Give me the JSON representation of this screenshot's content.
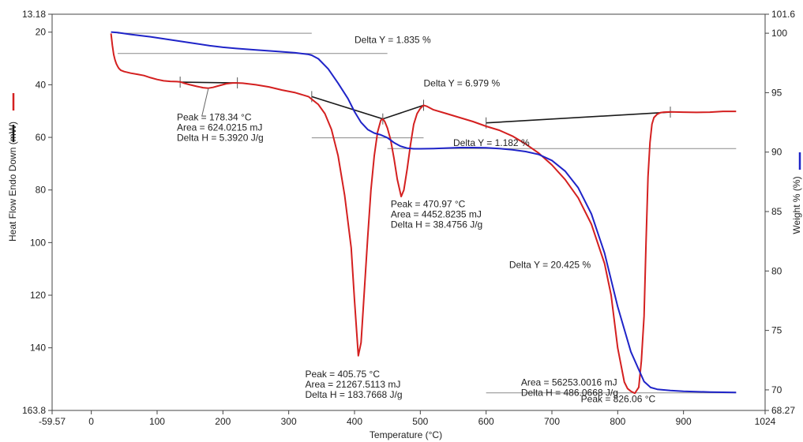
{
  "chart_data": {
    "type": "line",
    "xlabel": "Temperature (°C)",
    "ylabel_left": "Heat Flow Endo Down (mW)",
    "ylabel_right": "Weight % (%)",
    "x_ticks": [
      "-59.57",
      "0",
      "100",
      "200",
      "300",
      "400",
      "500",
      "600",
      "700",
      "800",
      "900",
      "1024"
    ],
    "left_ticks": [
      "13.18",
      "20",
      "40",
      "60",
      "80",
      "100",
      "120",
      "140",
      "163.8"
    ],
    "right_ticks": [
      "101.6",
      "100",
      "95",
      "90",
      "85",
      "80",
      "75",
      "70",
      "68.27"
    ],
    "xlim": [
      -59.57,
      1024
    ],
    "ylim_left": [
      13.18,
      163.8
    ],
    "ylim_left_inverted": true,
    "ylim_right": [
      68.27,
      101.6
    ],
    "grid": false,
    "legend": "none; colored markers beside axis titles",
    "series": [
      {
        "name": "Heat Flow",
        "axis": "left",
        "color": "#d42020",
        "x": [
          30,
          32,
          34,
          36,
          38,
          40,
          42,
          45,
          50,
          55,
          60,
          70,
          80,
          90,
          100,
          110,
          120,
          130,
          135,
          140,
          150,
          160,
          170,
          178,
          185,
          195,
          205,
          215,
          222,
          230,
          250,
          270,
          290,
          310,
          330,
          335,
          345,
          355,
          365,
          375,
          385,
          395,
          400,
          405.75,
          410,
          415,
          420,
          425,
          430,
          435,
          440,
          443,
          446,
          450,
          455,
          460,
          465,
          470.97,
          475,
          480,
          485,
          490,
          495,
          500,
          505,
          510,
          520,
          540,
          560,
          580,
          600,
          620,
          640,
          660,
          680,
          700,
          720,
          740,
          760,
          780,
          790,
          800,
          810,
          815,
          820,
          826.06,
          832,
          836,
          840,
          843,
          846,
          849,
          852,
          855,
          860,
          865,
          870,
          880,
          900,
          920,
          940,
          960,
          980
        ],
        "values": [
          20.5,
          25,
          28.5,
          30.5,
          32,
          33,
          33.8,
          34.5,
          35,
          35.3,
          35.6,
          36,
          36.5,
          37.3,
          38,
          38.5,
          38.7,
          38.8,
          38.9,
          39.3,
          40,
          40.6,
          41.1,
          41.3,
          41,
          40.3,
          39.6,
          39.3,
          39.3,
          39.4,
          40,
          40.8,
          42,
          43,
          44.5,
          45.5,
          47.5,
          51,
          57,
          67,
          82,
          102,
          122,
          143,
          138,
          118,
          98,
          80,
          67,
          58,
          53.5,
          53,
          54,
          56.5,
          61,
          68,
          76,
          82.5,
          80,
          72,
          63,
          55,
          51,
          49,
          47.8,
          48.2,
          49.5,
          51,
          52.5,
          54,
          55.8,
          57.3,
          59.5,
          62.5,
          66,
          70.5,
          76,
          83,
          93,
          108,
          120,
          140,
          153,
          155.5,
          156.5,
          157.3,
          155,
          145,
          128,
          100,
          75,
          62,
          55,
          52.5,
          51.2,
          50.6,
          50.4,
          50.3,
          50.4,
          50.5,
          50.4,
          50.1,
          50.1
        ]
      },
      {
        "name": "Weight %",
        "axis": "right",
        "color": "#1f24c8",
        "x": [
          30,
          40,
          60,
          90,
          120,
          150,
          180,
          200,
          220,
          250,
          280,
          310,
          330,
          335,
          345,
          360,
          375,
          390,
          400,
          410,
          420,
          430,
          440,
          450,
          460,
          470,
          480,
          490,
          500,
          520,
          540,
          560,
          580,
          600,
          620,
          640,
          660,
          680,
          700,
          720,
          740,
          760,
          780,
          800,
          820,
          840,
          850,
          860,
          880,
          900,
          940,
          980
        ],
        "values": [
          100.1,
          100.05,
          99.9,
          99.7,
          99.45,
          99.2,
          98.95,
          98.82,
          98.72,
          98.6,
          98.48,
          98.35,
          98.22,
          98.15,
          97.85,
          97.0,
          95.8,
          94.5,
          93.4,
          92.5,
          91.9,
          91.6,
          91.45,
          91.2,
          90.8,
          90.5,
          90.33,
          90.28,
          90.28,
          90.3,
          90.34,
          90.38,
          90.38,
          90.36,
          90.3,
          90.2,
          90.05,
          89.8,
          89.3,
          88.4,
          87.0,
          84.8,
          81.5,
          77.0,
          73.2,
          70.7,
          70.2,
          70.05,
          69.95,
          69.88,
          69.82,
          69.78
        ]
      },
      {
        "name": "Baseline",
        "axis": "left",
        "color": "#1a1a1a",
        "segments": [
          {
            "x": [
              135,
              222
            ],
            "values": [
              39,
              39.3
            ]
          },
          {
            "x": [
              335,
              443,
              505
            ],
            "values": [
              44.5,
              53,
              47.8
            ]
          },
          {
            "x": [
              600,
              880
            ],
            "values": [
              54.5,
              50.4
            ]
          }
        ]
      }
    ],
    "reference_lines": [
      {
        "axis": "right",
        "x": [
          40,
          335
        ],
        "y": 100
      },
      {
        "axis": "right",
        "x": [
          40,
          450
        ],
        "y": 98.3
      },
      {
        "axis": "right",
        "x": [
          335,
          505
        ],
        "y": 91.2
      },
      {
        "axis": "right",
        "x": [
          450,
          980
        ],
        "y": 90.3
      },
      {
        "axis": "right",
        "x": [
          600,
          980
        ],
        "y": 69.75
      }
    ],
    "annotations": [
      {
        "lines": [
          "Delta Y = 1.835 %"
        ],
        "x": 400,
        "y": 24.2
      },
      {
        "lines": [
          "Delta Y = 6.979 %"
        ],
        "x": 505,
        "y": 40.7
      },
      {
        "lines": [
          "Delta Y = 1.182 %"
        ],
        "x": 550,
        "y": 63.3
      },
      {
        "lines": [
          "Delta Y = 20.425 %"
        ],
        "x": 635,
        "y": 109.6
      },
      {
        "lines": [
          "Peak = 178.34 °C",
          "Area = 624.0215 mJ",
          "Delta H = 5.3920 J/g"
        ],
        "x": 130,
        "y": 53.5
      },
      {
        "lines": [
          "Peak = 470.97 °C",
          "Area = 4452.8235 mJ",
          "Delta H = 38.4756 J/g"
        ],
        "x": 455,
        "y": 86.6
      },
      {
        "lines": [
          "Peak = 405.75 °C",
          "Area = 21267.5113 mJ",
          "Delta H = 183.7668 J/g"
        ],
        "x": 325,
        "y": 151.2
      },
      {
        "lines": [
          "Area = 56253.0016 mJ",
          "Delta H = 486.0668 J/g"
        ],
        "x": 653,
        "y": 154.3
      },
      {
        "lines": [
          "Peak = 826.06 °C"
        ],
        "x": 744,
        "y": 160.7
      }
    ]
  }
}
